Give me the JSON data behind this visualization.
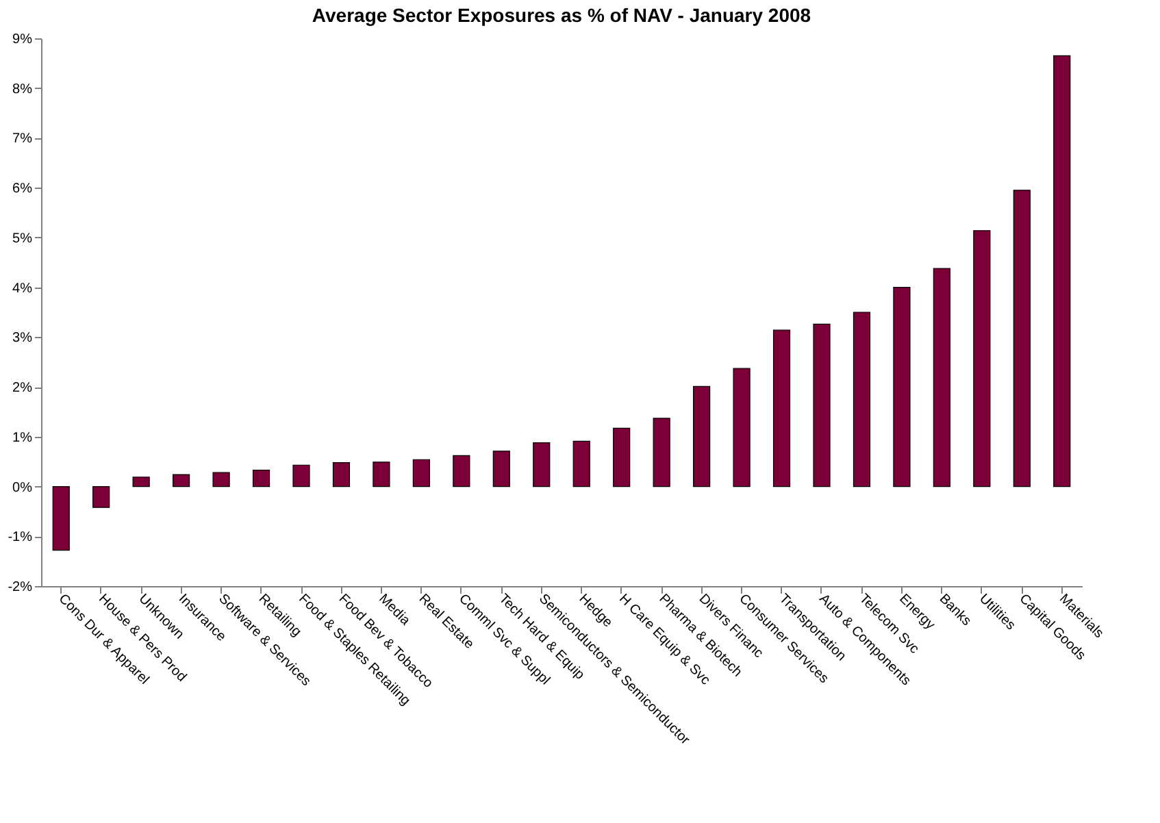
{
  "chart_data": {
    "type": "bar",
    "title": "Average Sector Exposures as % of NAV - January 2008",
    "categories": [
      "Cons Dur & Apparel",
      "House & Pers Prod",
      "Unknown",
      "Insurance",
      "Software & Services",
      "Retailing",
      "Food & Staples Retailing",
      "Food Bev & Tobacco",
      "Media",
      "Real Estate",
      "Comml Svc & Suppl",
      "Tech Hard & Equip",
      "Semiconductors & Semiconductor",
      "Hedge",
      "H Care Equip & Svc",
      "Pharma & Biotech",
      "Divers Financ",
      "Consumer Services",
      "Transportation",
      "Auto & Components",
      "Telecom Svc",
      "Energy",
      "Banks",
      "Utilities",
      "Capital Goods",
      "Materials"
    ],
    "values": [
      -1.28,
      -0.42,
      0.19,
      0.24,
      0.28,
      0.33,
      0.43,
      0.48,
      0.49,
      0.54,
      0.62,
      0.71,
      0.88,
      0.91,
      1.17,
      1.37,
      2.01,
      2.37,
      3.14,
      3.26,
      3.5,
      4.0,
      4.38,
      5.14,
      5.95,
      8.65
    ],
    "color": "#7b0038",
    "ylim": [
      -2,
      9
    ],
    "yticks": [
      {
        "value": -2,
        "label": "-2%"
      },
      {
        "value": -1,
        "label": "-1%"
      },
      {
        "value": 0,
        "label": "0%"
      },
      {
        "value": 1,
        "label": "1%"
      },
      {
        "value": 2,
        "label": "2%"
      },
      {
        "value": 3,
        "label": "3%"
      },
      {
        "value": 4,
        "label": "4%"
      },
      {
        "value": 5,
        "label": "5%"
      },
      {
        "value": 6,
        "label": "6%"
      },
      {
        "value": 7,
        "label": "7%"
      },
      {
        "value": 8,
        "label": "8%"
      },
      {
        "value": 9,
        "label": "9%"
      }
    ],
    "grid": false
  }
}
